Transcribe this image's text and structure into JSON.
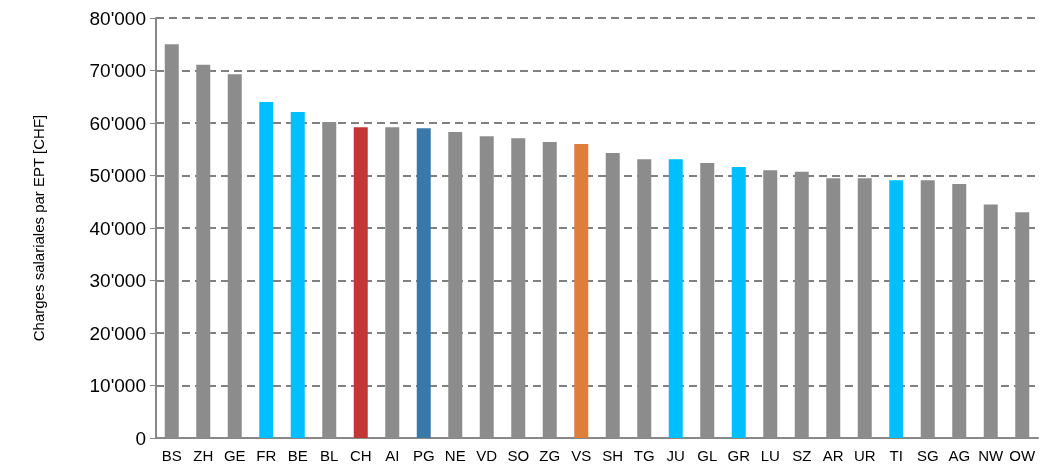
{
  "chart_data": {
    "type": "bar",
    "ylabel": "Charges salariales par EPT [CHF]",
    "categories": [
      "BS",
      "ZH",
      "GE",
      "FR",
      "BE",
      "BL",
      "CH",
      "AI",
      "PG",
      "NE",
      "VD",
      "SO",
      "ZG",
      "VS",
      "SH",
      "TG",
      "JU",
      "GL",
      "GR",
      "LU",
      "SZ",
      "AR",
      "UR",
      "TI",
      "SG",
      "AG",
      "NW",
      "OW"
    ],
    "values": [
      75000,
      71100,
      69300,
      64000,
      62100,
      60200,
      59200,
      59200,
      59000,
      58300,
      57500,
      57100,
      56400,
      56000,
      54300,
      53100,
      53100,
      52400,
      51600,
      51000,
      50700,
      49500,
      49500,
      49100,
      49100,
      48400,
      44500,
      43000
    ],
    "colors": [
      "#8c8c8c",
      "#8c8c8c",
      "#8c8c8c",
      "#00bfff",
      "#00bfff",
      "#8c8c8c",
      "#c43636",
      "#8c8c8c",
      "#3a78a8",
      "#8c8c8c",
      "#8c8c8c",
      "#8c8c8c",
      "#8c8c8c",
      "#dd7e3b",
      "#8c8c8c",
      "#8c8c8c",
      "#00bfff",
      "#8c8c8c",
      "#00bfff",
      "#8c8c8c",
      "#8c8c8c",
      "#8c8c8c",
      "#8c8c8c",
      "#00bfff",
      "#8c8c8c",
      "#8c8c8c",
      "#8c8c8c",
      "#8c8c8c"
    ],
    "ylim": [
      0,
      80000
    ],
    "yticks": [
      0,
      {
        "value": 10000,
        "label": "10'000"
      },
      {
        "value": 20000,
        "label": "20'000"
      },
      {
        "value": 30000,
        "label": "30'000"
      },
      {
        "value": 40000,
        "label": "40'000"
      },
      {
        "value": 50000,
        "label": "50'000"
      },
      {
        "value": 60000,
        "label": "60'000"
      },
      {
        "value": 70000,
        "label": "70'000"
      },
      {
        "value": 80000,
        "label": "80'000"
      }
    ],
    "grid": "y"
  }
}
